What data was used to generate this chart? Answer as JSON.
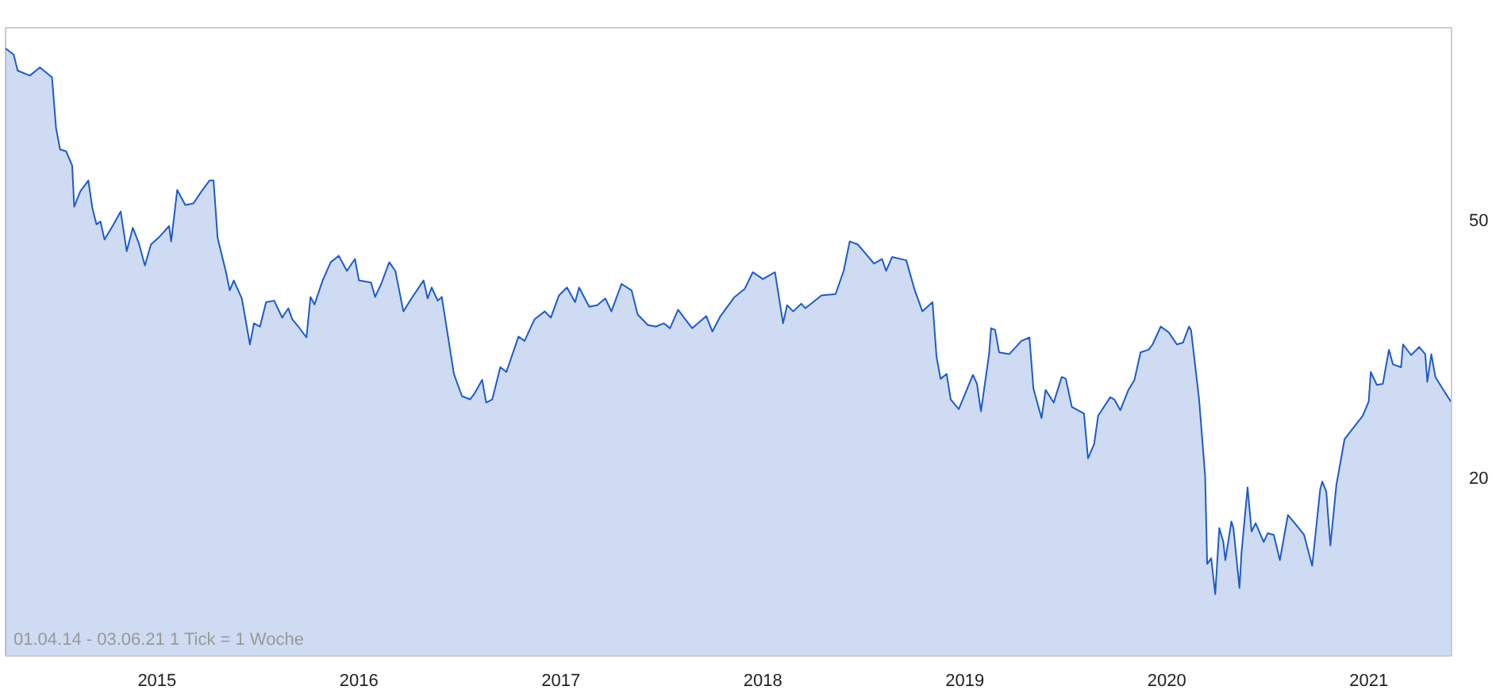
{
  "chart_data": {
    "type": "area",
    "xlim": [
      2014.25,
      2021.41
    ],
    "ylim": [
      10.6,
      99
    ],
    "log": true,
    "grid": false,
    "xticks": [
      2015,
      2016,
      2017,
      2018,
      2019,
      2020,
      2021
    ],
    "yticks": [
      20,
      50
    ],
    "annotations": [
      "01.04.14 - 03.06.21   1 Tick = 1 Woche"
    ],
    "series": [
      {
        "color": "#1f5bc6",
        "x": [
          2014.25,
          2014.29,
          2014.31,
          2014.37,
          2014.42,
          2014.48,
          2014.5,
          2014.52,
          2014.55,
          2014.58,
          2014.59,
          2014.62,
          2014.66,
          2014.68,
          2014.7,
          2014.72,
          2014.74,
          2014.78,
          2014.82,
          2014.85,
          2014.88,
          2014.91,
          2014.94,
          2014.97,
          2015.01,
          2015.06,
          2015.07,
          2015.1,
          2015.14,
          2015.18,
          2015.22,
          2015.26,
          2015.28,
          2015.3,
          2015.34,
          2015.36,
          2015.38,
          2015.42,
          2015.46,
          2015.48,
          2015.51,
          2015.54,
          2015.58,
          2015.62,
          2015.65,
          2015.67,
          2015.7,
          2015.74,
          2015.76,
          2015.78,
          2015.82,
          2015.86,
          2015.9,
          2015.94,
          2015.98,
          2016.0,
          2016.06,
          2016.08,
          2016.11,
          2016.15,
          2016.18,
          2016.22,
          2016.26,
          2016.32,
          2016.34,
          2016.36,
          2016.39,
          2016.41,
          2016.47,
          2016.51,
          2016.55,
          2016.57,
          2016.61,
          2016.63,
          2016.66,
          2016.7,
          2016.73,
          2016.79,
          2016.82,
          2016.86,
          2016.87,
          2016.92,
          2016.95,
          2016.99,
          2017.03,
          2017.07,
          2017.09,
          2017.14,
          2017.18,
          2017.22,
          2017.25,
          2017.3,
          2017.35,
          2017.38,
          2017.43,
          2017.47,
          2017.51,
          2017.54,
          2017.58,
          2017.65,
          2017.72,
          2017.75,
          2017.79,
          2017.86,
          2017.91,
          2017.95,
          2018.0,
          2018.06,
          2018.1,
          2018.12,
          2018.15,
          2018.19,
          2018.21,
          2018.29,
          2018.36,
          2018.4,
          2018.43,
          2018.47,
          2018.51,
          2018.55,
          2018.59,
          2018.61,
          2018.64,
          2018.71,
          2018.75,
          2018.79,
          2018.84,
          2018.86,
          2018.88,
          2018.91,
          2018.93,
          2018.97,
          2019.04,
          2019.06,
          2019.08,
          2019.12,
          2019.13,
          2019.15,
          2019.17,
          2019.22,
          2019.28,
          2019.32,
          2019.34,
          2019.38,
          2019.4,
          2019.44,
          2019.48,
          2019.5,
          2019.53,
          2019.59,
          2019.61,
          2019.64,
          2019.66,
          2019.72,
          2019.74,
          2019.77,
          2019.81,
          2019.84,
          2019.87,
          2019.91,
          2019.93,
          2019.97,
          2020.01,
          2020.05,
          2020.08,
          2020.11,
          2020.12,
          2020.15,
          2020.16,
          2020.19,
          2020.2,
          2020.22,
          2020.24,
          2020.26,
          2020.28,
          2020.29,
          2020.32,
          2020.33,
          2020.36,
          2020.37,
          2020.4,
          2020.42,
          2020.44,
          2020.48,
          2020.5,
          2020.53,
          2020.56,
          2020.6,
          2020.64,
          2020.68,
          2020.72,
          2020.76,
          2020.77,
          2020.79,
          2020.81,
          2020.84,
          2020.86,
          2020.88,
          2020.93,
          2020.97,
          2021.0,
          2021.01,
          2021.04,
          2021.07,
          2021.1,
          2021.12,
          2021.16,
          2021.17,
          2021.21,
          2021.25,
          2021.28,
          2021.29,
          2021.31,
          2021.33,
          2021.36,
          2021.41
        ],
        "values": [
          92,
          90,
          85,
          83.5,
          86,
          83,
          69.3,
          64.2,
          63.8,
          60.6,
          52.4,
          55.3,
          57.5,
          52.1,
          49.2,
          49.7,
          46.6,
          48.9,
          51.5,
          44.7,
          48.6,
          46,
          42.5,
          45.8,
          47,
          48.9,
          46.3,
          55.6,
          52.7,
          53,
          55.3,
          57.5,
          57.5,
          46.9,
          41.7,
          38.9,
          40.3,
          37.8,
          32.1,
          34.6,
          34.2,
          37.3,
          37.5,
          35.3,
          36.5,
          35.1,
          34.2,
          32.9,
          38,
          37,
          40.3,
          43,
          44,
          41.7,
          43.5,
          40.3,
          40,
          38,
          39.8,
          43,
          41.7,
          36.1,
          37.8,
          40.3,
          37.8,
          39.3,
          37.5,
          38,
          28.9,
          26.7,
          26.4,
          26.9,
          28.3,
          26.1,
          26.4,
          29.6,
          29.1,
          33,
          32.5,
          34.6,
          35.1,
          36.1,
          35.3,
          38.2,
          39.3,
          37.3,
          39.3,
          36.7,
          36.9,
          37.8,
          36.1,
          39.8,
          38.9,
          35.7,
          34.4,
          34.2,
          34.6,
          34,
          36.3,
          34,
          35.5,
          33.6,
          35.5,
          38,
          39.1,
          41.5,
          40.5,
          41.5,
          34.6,
          36.9,
          36.1,
          37.1,
          36.5,
          38.2,
          38.4,
          41.7,
          46.3,
          45.8,
          44.3,
          42.8,
          43.5,
          41.7,
          43.8,
          43.3,
          39.1,
          36.1,
          37.3,
          30.7,
          28.4,
          28.9,
          26.4,
          25.5,
          28.8,
          27.9,
          25.3,
          31,
          34,
          33.8,
          31.2,
          31,
          32.5,
          32.9,
          27.4,
          24.7,
          27.3,
          26.1,
          28.6,
          28.4,
          25.7,
          25.1,
          21.4,
          22.5,
          24.9,
          26.6,
          26.4,
          25.4,
          27.3,
          28.3,
          31.2,
          31.5,
          32.1,
          34.2,
          33.5,
          32.1,
          32.3,
          34.2,
          33.8,
          28.1,
          26.4,
          20.1,
          14.7,
          15,
          13.2,
          16.7,
          15.9,
          14.9,
          17.1,
          16.7,
          13.5,
          15.3,
          19.3,
          16.5,
          17,
          15.9,
          16.4,
          16.3,
          14.9,
          17.5,
          16.9,
          16.3,
          14.6,
          19.2,
          19.7,
          19,
          15.7,
          19.5,
          21.1,
          22.9,
          24,
          24.9,
          26.2,
          29.1,
          27.8,
          27.9,
          31.5,
          29.9,
          29.6,
          32.1,
          30.9,
          31.8,
          31,
          28.1,
          31,
          28.6,
          27.6,
          26.1
        ]
      }
    ]
  }
}
